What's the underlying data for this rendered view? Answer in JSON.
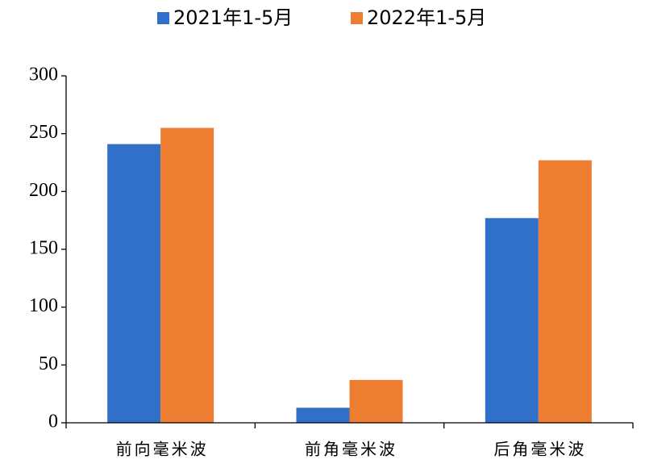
{
  "chart_data": {
    "type": "bar",
    "categories": [
      "前向毫米波",
      "前角毫米波",
      "后角毫米波"
    ],
    "series": [
      {
        "name": "2021年1-5月",
        "color": "#3070c8",
        "values": [
          241,
          13,
          177
        ]
      },
      {
        "name": "2022年1-5月",
        "color": "#ed7d31",
        "values": [
          255,
          37,
          227
        ]
      }
    ],
    "ylim": [
      0,
      300
    ],
    "yticks": [
      0,
      50,
      100,
      150,
      200,
      250,
      300
    ],
    "grid": false,
    "legend": "top"
  }
}
